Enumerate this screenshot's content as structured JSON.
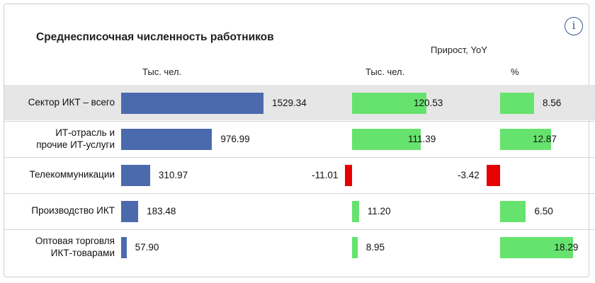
{
  "title": "Среднесписочная численность работников",
  "info_icon": "i",
  "headers": {
    "growth": "Прирост, YoY",
    "col1": "Тыс. чел.",
    "col2": "Тыс. чел.",
    "col3": "%"
  },
  "colors": {
    "count_bar": "#4b6aad",
    "positive": "#66e36e",
    "negative": "#e60000",
    "highlight_row": "#e6e6e6"
  },
  "chart_data": {
    "type": "bar",
    "categories": [
      "Сектор ИКТ – всего",
      "ИТ-отрасль и прочие ИТ-услуги",
      "Телекоммуникации",
      "Производство ИКТ",
      "Оптовая торговля ИКТ-товарами"
    ],
    "category_lines": [
      [
        "Сектор ИКТ – всего"
      ],
      [
        "ИТ-отрасль и",
        "прочие ИТ-услуги"
      ],
      [
        "Телекоммуникации"
      ],
      [
        "Производство ИКТ"
      ],
      [
        "Оптовая торговля",
        "ИКТ-товарами"
      ]
    ],
    "series": [
      {
        "name": "Тыс. чел.",
        "values": [
          1529.34,
          976.99,
          310.97,
          183.48,
          57.9
        ],
        "labels": [
          "1529.34",
          "976.99",
          "310.97",
          "183.48",
          "57.90"
        ]
      },
      {
        "name": "Прирост, YoY Тыс. чел.",
        "values": [
          120.53,
          111.39,
          -11.01,
          11.2,
          8.95
        ],
        "labels": [
          "120.53",
          "111.39",
          "-11.01",
          "11.20",
          "8.95"
        ]
      },
      {
        "name": "Прирост, YoY %",
        "values": [
          8.56,
          12.87,
          -3.42,
          6.5,
          18.29
        ],
        "labels": [
          "8.56",
          "12.87",
          "-3.42",
          "6.50",
          "18.29"
        ]
      }
    ],
    "highlighted_row": 0
  }
}
